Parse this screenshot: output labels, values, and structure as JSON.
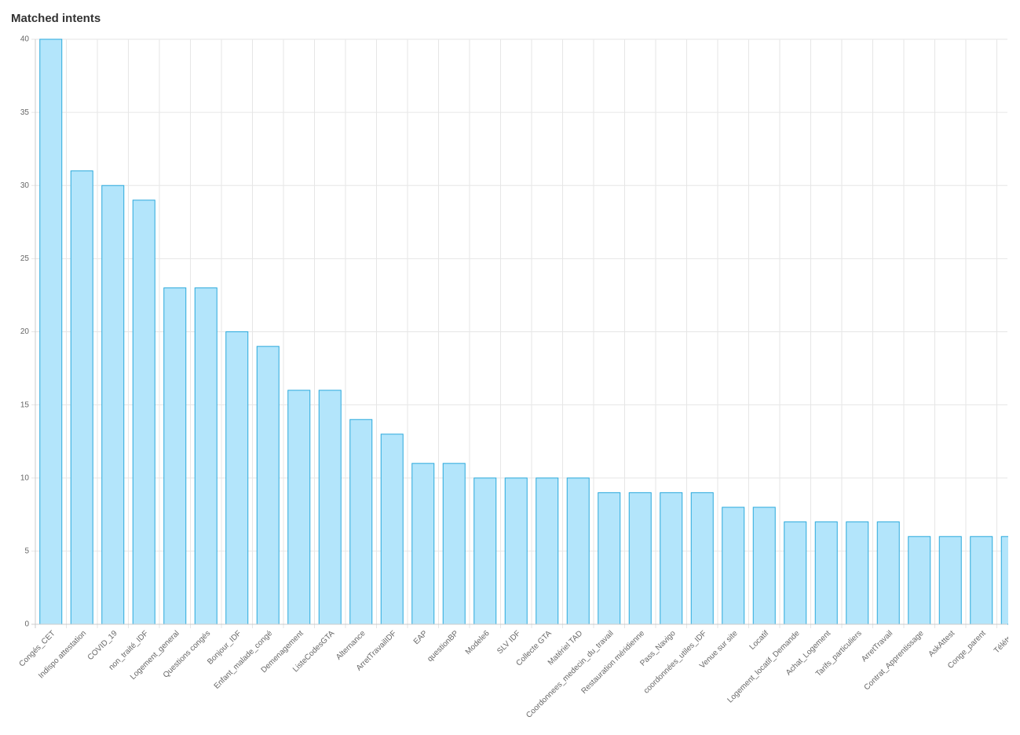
{
  "chart_data": {
    "type": "bar",
    "title": "Matched intents",
    "categories": [
      "Congés_CET",
      "Indispo attestation",
      "COVID_19",
      "non_traité_IDF",
      "Logement_general",
      "Questions congés",
      "Bonjour_IDF",
      "Enfant_malade_congé",
      "Demenagement",
      "ListeCodesGTA",
      "Alternance",
      "ArretTravailIDF",
      "EAP",
      "questionBP",
      "Modele6",
      "SLV IDF",
      "Collecte GTA",
      "Matériel TAD",
      "Coordonnees_medecin_du_travail",
      "Restauration méridienne",
      "Pass_Navigo",
      "coordonnées_utiles_IDF",
      "Venue sur site",
      "Locatif",
      "Logement_locatif_Demande",
      "Achat_Logement",
      "Tarifs_particuliers",
      "ArretTravail",
      "Contrat_Apprentissage",
      "AskAttest",
      "Conge_parent",
      "Télétrav"
    ],
    "values": [
      40,
      31,
      30,
      29,
      23,
      23,
      20,
      19,
      16,
      16,
      14,
      13,
      11,
      11,
      10,
      10,
      10,
      10,
      9,
      9,
      9,
      9,
      8,
      8,
      7,
      7,
      7,
      7,
      6,
      6,
      6,
      6
    ],
    "color": "#b3e5fb",
    "border_color": "#2aa9dc",
    "ylim": [
      0,
      40
    ],
    "yticks": [
      0,
      5,
      10,
      15,
      20,
      25,
      30,
      35,
      40
    ],
    "grid": true
  }
}
